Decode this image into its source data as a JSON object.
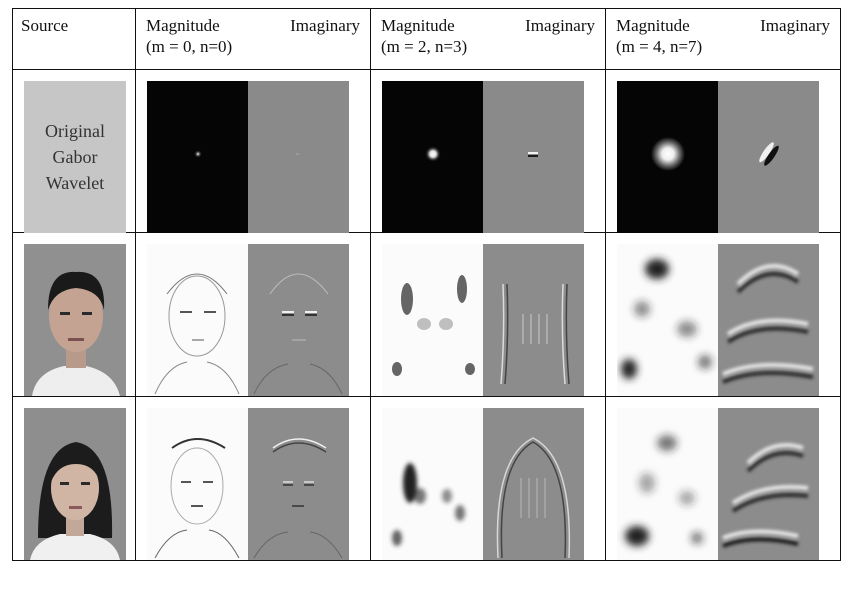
{
  "table": {
    "source_header": "Source",
    "columns": [
      {
        "left": "Magnitude",
        "right": "Imaginary",
        "params": "(m = 0, n=0)"
      },
      {
        "left": "Magnitude",
        "right": "Imaginary",
        "params": "(m = 2, n=3)"
      },
      {
        "left": "Magnitude",
        "right": "Imaginary",
        "params": "(m = 4, n=7)"
      }
    ],
    "rows": [
      {
        "source_lines": [
          "Original",
          "Gabor",
          "Wavelet"
        ]
      }
    ]
  },
  "colors": {
    "border": "#111111",
    "kernel_magnitude_bg": "#050505",
    "kernel_imaginary_bg": "#8a8a8a",
    "face_bg": "#8f8f8f",
    "original_panel_bg": "#c6c6c6"
  }
}
